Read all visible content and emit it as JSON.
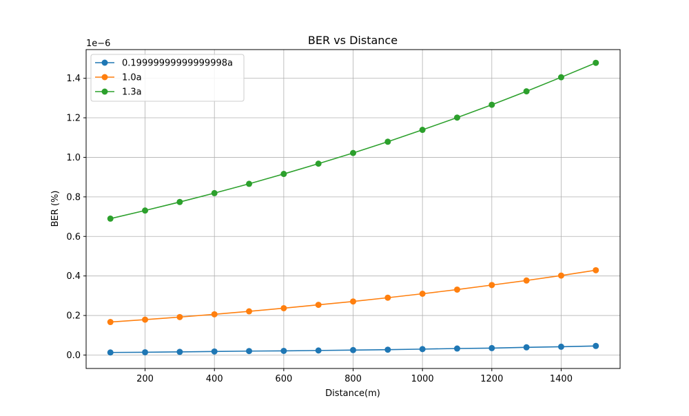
{
  "chart_data": {
    "type": "line",
    "title": "BER vs Distance",
    "xlabel": "Distance(m)",
    "ylabel": "BER (%)",
    "y_offset_label": "1e−6",
    "x": [
      100,
      200,
      300,
      400,
      500,
      600,
      700,
      800,
      900,
      1000,
      1100,
      1200,
      1300,
      1400,
      1500
    ],
    "xlim": [
      30,
      1570
    ],
    "ylim": [
      -6.8e-08,
      1.545e-06
    ],
    "x_ticks": [
      200,
      400,
      600,
      800,
      1000,
      1200,
      1400
    ],
    "x_tick_labels": [
      "200",
      "400",
      "600",
      "800",
      "1000",
      "1200",
      "1400"
    ],
    "y_ticks": [
      0,
      2e-07,
      4e-07,
      6e-07,
      8e-07,
      1e-06,
      1.2e-06,
      1.4e-06
    ],
    "y_tick_labels": [
      "0.0",
      "0.2",
      "0.4",
      "0.6",
      "0.8",
      "1.0",
      "1.2",
      "1.4"
    ],
    "grid": true,
    "legend_position": "top-left",
    "series": [
      {
        "name": "0.19999999999999998a",
        "color": "#1f77b4",
        "values": [
          1.3e-08,
          1.4e-08,
          1.6e-08,
          1.8e-08,
          2e-08,
          2.1e-08,
          2.3e-08,
          2.5e-08,
          2.7e-08,
          3e-08,
          3.3e-08,
          3.5e-08,
          3.9e-08,
          4.2e-08,
          4.6e-08
        ]
      },
      {
        "name": "1.0a",
        "color": "#ff7f0e",
        "values": [
          1.67e-07,
          1.79e-07,
          1.92e-07,
          2.06e-07,
          2.21e-07,
          2.37e-07,
          2.54e-07,
          2.71e-07,
          2.9e-07,
          3.1e-07,
          3.31e-07,
          3.54e-07,
          3.77e-07,
          4.02e-07,
          4.29e-07
        ]
      },
      {
        "name": "1.3a",
        "color": "#2ca02c",
        "values": [
          6.9e-07,
          7.31e-07,
          7.74e-07,
          8.19e-07,
          8.66e-07,
          9.16e-07,
          9.68e-07,
          1.022e-06,
          1.079e-06,
          1.139e-06,
          1.201e-06,
          1.266e-06,
          1.334e-06,
          1.405e-06,
          1.478e-06
        ]
      }
    ]
  }
}
